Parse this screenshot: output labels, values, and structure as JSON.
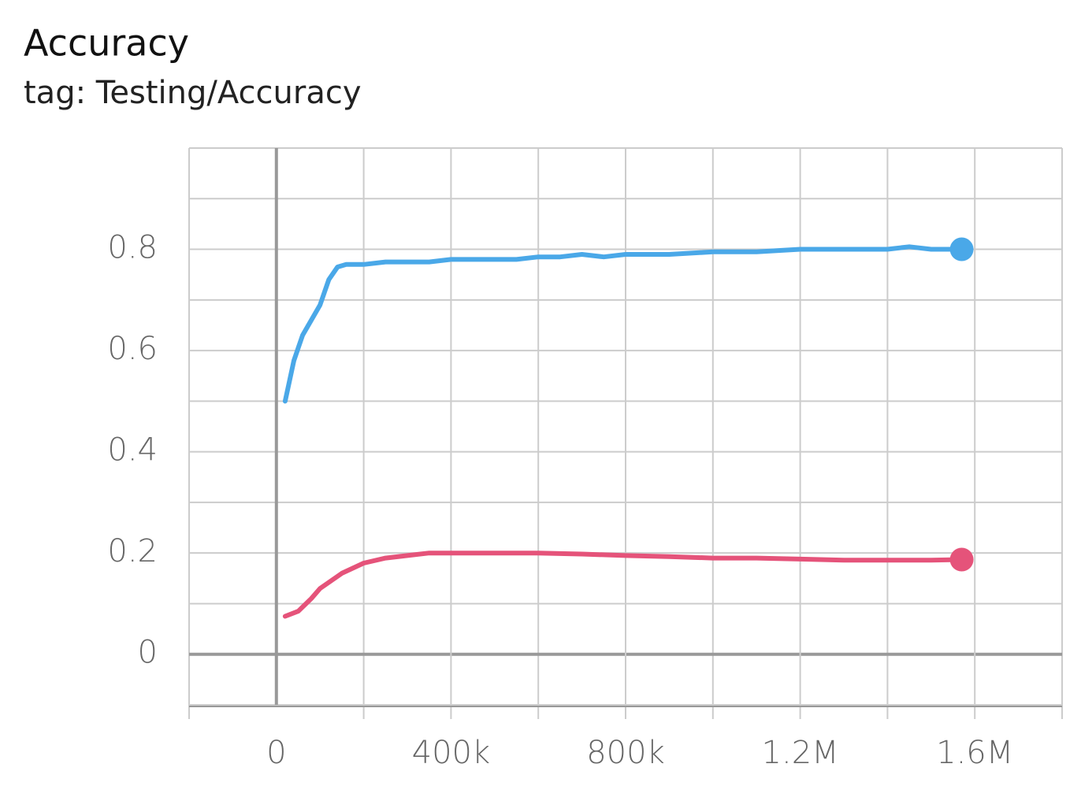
{
  "chart_data": {
    "type": "line",
    "title": "Accuracy",
    "subtitle": "tag: Testing/Accuracy",
    "xlim": [
      -200000,
      1800000
    ],
    "xticks": [
      0,
      {
        "value": 400000,
        "label": "400k"
      },
      {
        "value": 800000,
        "label": "800k"
      },
      {
        "value": 1200000,
        "label": "1.2M"
      },
      {
        "value": 1600000,
        "label": "1.6M"
      }
    ],
    "minor_xgrid": [
      -200000,
      200000,
      600000,
      1000000,
      1400000,
      1800000
    ],
    "ylim": [
      -0.1,
      1.0
    ],
    "yticks": [
      0,
      0.2,
      0.4,
      0.6,
      0.8
    ],
    "minor_ygrid": [
      -0.1,
      0.1,
      0.3,
      0.5,
      0.7,
      0.9,
      1.0
    ],
    "grid": true,
    "series": [
      {
        "color": "#4aa8e8",
        "x": [
          20000,
          40000,
          60000,
          80000,
          100000,
          120000,
          140000,
          160000,
          200000,
          250000,
          300000,
          350000,
          400000,
          450000,
          500000,
          550000,
          600000,
          650000,
          700000,
          750000,
          800000,
          900000,
          1000000,
          1100000,
          1200000,
          1300000,
          1400000,
          1450000,
          1500000,
          1570000
        ],
        "values": [
          0.5,
          0.58,
          0.63,
          0.66,
          0.69,
          0.74,
          0.765,
          0.77,
          0.77,
          0.775,
          0.775,
          0.775,
          0.78,
          0.78,
          0.78,
          0.78,
          0.785,
          0.785,
          0.79,
          0.785,
          0.79,
          0.79,
          0.795,
          0.795,
          0.8,
          0.8,
          0.8,
          0.805,
          0.8,
          0.8
        ]
      },
      {
        "color": "#e5537a",
        "x": [
          20000,
          50000,
          80000,
          100000,
          150000,
          200000,
          250000,
          300000,
          350000,
          400000,
          500000,
          600000,
          700000,
          800000,
          900000,
          1000000,
          1100000,
          1200000,
          1300000,
          1400000,
          1500000,
          1570000
        ],
        "values": [
          0.075,
          0.085,
          0.11,
          0.13,
          0.16,
          0.18,
          0.19,
          0.195,
          0.2,
          0.2,
          0.2,
          0.2,
          0.198,
          0.195,
          0.193,
          0.19,
          0.19,
          0.188,
          0.186,
          0.186,
          0.186,
          0.187
        ]
      }
    ]
  }
}
